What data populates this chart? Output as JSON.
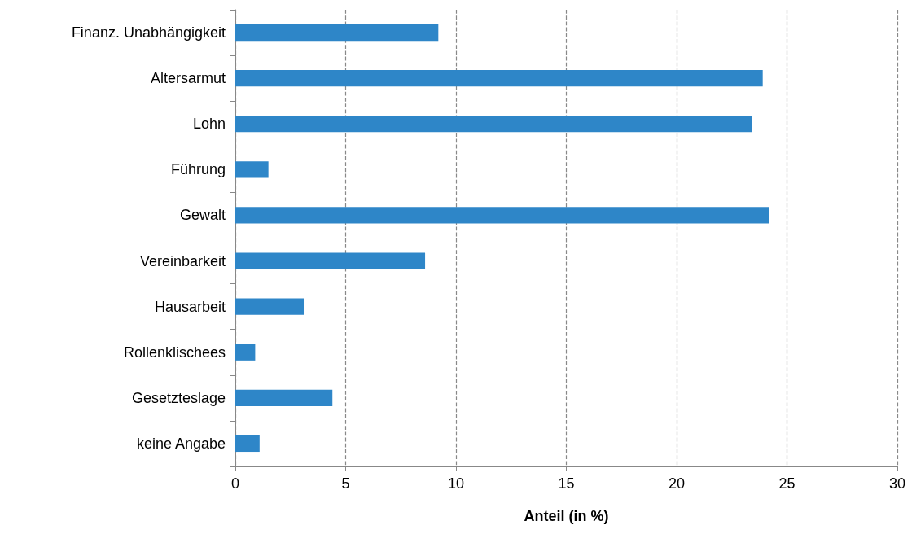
{
  "chart_data": {
    "type": "bar",
    "orientation": "horizontal",
    "xlabel": "Anteil (in %)",
    "categories": [
      "Finanz. Unabhängigkeit",
      "Altersarmut",
      "Lohn",
      "Führung",
      "Gewalt",
      "Vereinbarkeit",
      "Hausarbeit",
      "Rollenklischees",
      "Gesetzteslage",
      "keine Angabe"
    ],
    "values": [
      9.2,
      23.9,
      23.4,
      1.5,
      24.2,
      8.6,
      3.1,
      0.9,
      4.4,
      1.1
    ],
    "color": "#2e86c8",
    "xlim": [
      0,
      30
    ],
    "xticks": [
      0,
      5,
      10,
      15,
      20,
      25,
      30
    ],
    "grid": "x"
  }
}
